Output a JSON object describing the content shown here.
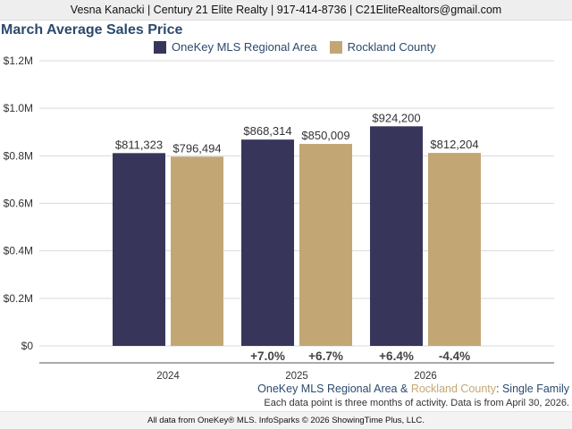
{
  "header": {
    "contact_line": "Vesna Kanacki | Century 21 Elite Realty | 917-414-8736 | C21EliteRealtors@gmail.com"
  },
  "colors": {
    "series_1": "#37365a",
    "series_2": "#c2a775",
    "title": "#2c4a6e",
    "grid": "#d9d9d9",
    "axis": "#555555"
  },
  "chart_data": {
    "type": "bar",
    "title": "March Average Sales Price",
    "categories": [
      "2024",
      "2025",
      "2026"
    ],
    "series": [
      {
        "name": "OneKey MLS Regional Area",
        "values": [
          811323,
          868314,
          924200
        ],
        "value_labels": [
          "$811,323",
          "$868,314",
          "$924,200"
        ],
        "change_labels": [
          "",
          "+7.0%",
          "+6.4%"
        ]
      },
      {
        "name": "Rockland County",
        "values": [
          796494,
          850009,
          812204
        ],
        "value_labels": [
          "$796,494",
          "$850,009",
          "$812,204"
        ],
        "change_labels": [
          "",
          "+6.7%",
          "-4.4%"
        ]
      }
    ],
    "yticks": [
      0,
      200000,
      400000,
      600000,
      800000,
      1000000,
      1200000
    ],
    "ytick_labels": [
      "$0",
      "$0.2M",
      "$0.4M",
      "$0.6M",
      "$0.8M",
      "$1.0M",
      "$1.2M"
    ],
    "ylim": [
      0,
      1200000
    ],
    "grid": true,
    "legend_position": "top"
  },
  "footer": {
    "series_a": "OneKey MLS Regional Area",
    "ampersand": " & ",
    "series_b": "Rockland County",
    "separator": ": ",
    "property_type": "Single Family",
    "note": "Each data point is three months of activity. Data is from April 30, 2026.",
    "credits": "All data from OneKey® MLS. InfoSparks © 2026 ShowingTime Plus, LLC."
  }
}
